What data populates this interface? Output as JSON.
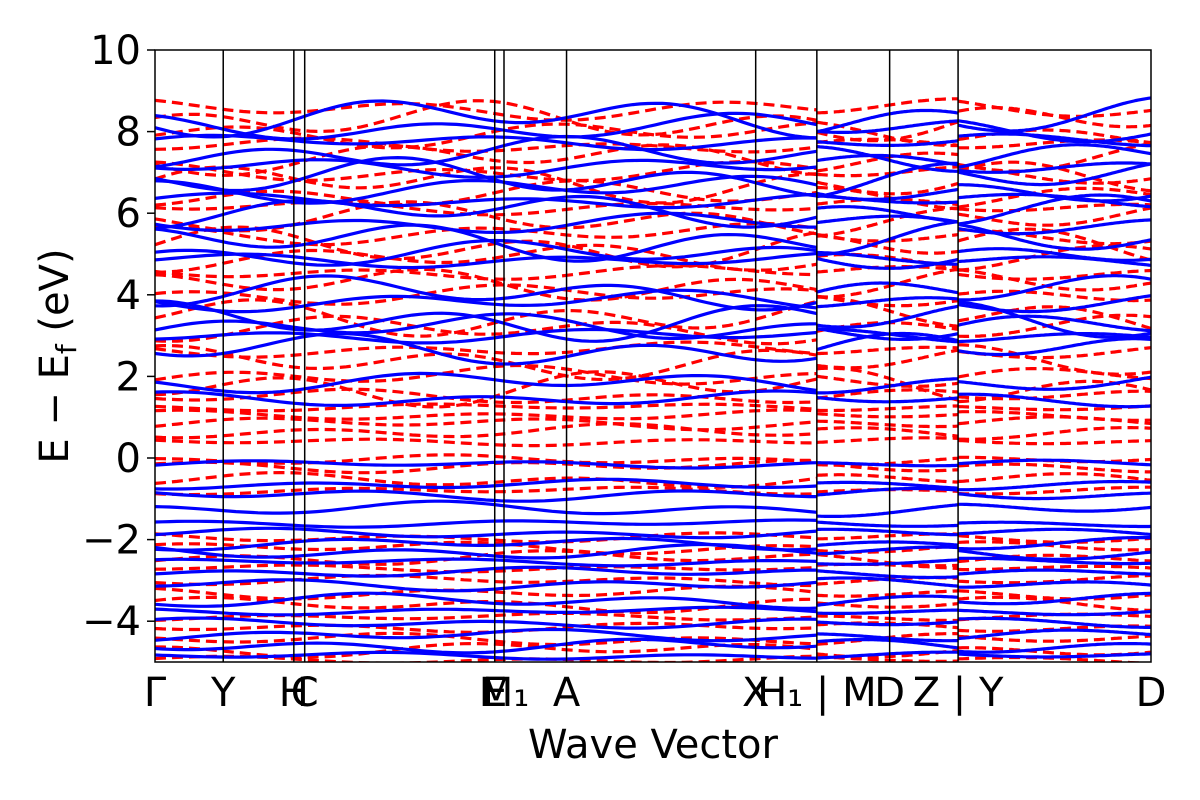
{
  "chart_data": {
    "type": "line",
    "title": "",
    "xlabel": "Wave Vector",
    "ylabel_parts": {
      "main": "E − E",
      "sub": "f",
      "unit": " (eV)"
    },
    "ylim": [
      -5,
      10
    ],
    "yticks": [
      -4,
      -2,
      0,
      2,
      4,
      6,
      8,
      10
    ],
    "ytick_labels": [
      "−4",
      "−2",
      "0",
      "2",
      "4",
      "6",
      "8",
      "10"
    ],
    "xlim": [
      0,
      1
    ],
    "grid": false,
    "legend": "none",
    "kpoints": [
      {
        "label": "Γ",
        "x": 0.0
      },
      {
        "label": "Y",
        "x": 0.0685
      },
      {
        "label": "H",
        "x": 0.1394
      },
      {
        "label": "C",
        "x": 0.1503
      },
      {
        "label": "E",
        "x": 0.3411
      },
      {
        "label": "M₁",
        "x": 0.3504
      },
      {
        "label": "A",
        "x": 0.4132
      },
      {
        "label": "X",
        "x": 0.6031
      },
      {
        "label": "H₁ | M",
        "x": 0.6645
      },
      {
        "label": "D",
        "x": 0.7376
      },
      {
        "label": "Z | Y",
        "x": 0.8063
      },
      {
        "label": "D",
        "x": 1.0
      }
    ],
    "path_breaks": [
      0.6645,
      0.8063
    ],
    "series": [
      {
        "key": "up",
        "color": "#0000ff",
        "style": "solid",
        "bands": [
          -4.85,
          -4.6,
          -4.35,
          -4.05,
          -3.75,
          -3.5,
          -3.1,
          -2.8,
          -2.55,
          -2.3,
          -2.1,
          -1.85,
          -1.6,
          -1.25,
          -0.9,
          -0.65,
          -0.15,
          1.45,
          1.85,
          2.65,
          3.0,
          3.2,
          3.35,
          3.85,
          4.05,
          4.85,
          5.0,
          5.3,
          5.75,
          6.05,
          6.3,
          6.6,
          6.85,
          7.15,
          7.45,
          7.75,
          8.1,
          8.35
        ]
      },
      {
        "key": "down",
        "color": "#ff0000",
        "style": "dashed",
        "bands": [
          -4.95,
          -4.7,
          -4.45,
          -4.15,
          -3.9,
          -3.6,
          -3.3,
          -3.0,
          -2.7,
          -2.45,
          -2.2,
          -1.95,
          -0.8,
          -0.55,
          -0.2,
          -0.05,
          0.4,
          0.65,
          0.85,
          1.05,
          1.25,
          1.5,
          1.75,
          2.0,
          2.35,
          2.65,
          3.15,
          3.45,
          4.0,
          4.25,
          4.55,
          4.9,
          5.15,
          5.5,
          5.85,
          6.15,
          6.45,
          6.75,
          7.0,
          7.35,
          7.65,
          7.95,
          8.25,
          8.55
        ]
      }
    ]
  }
}
